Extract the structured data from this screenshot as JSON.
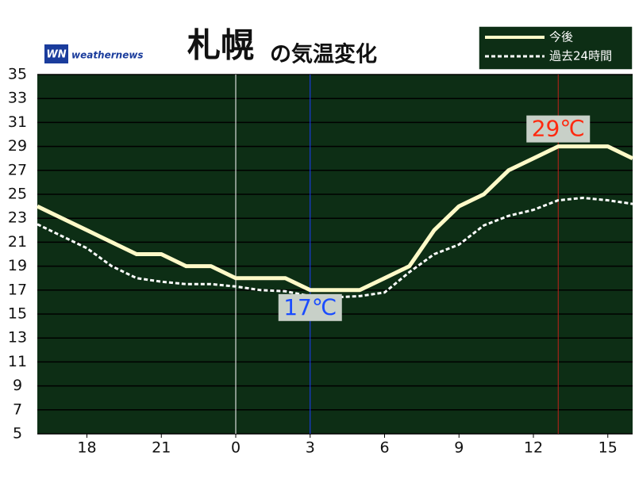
{
  "chart_data": {
    "type": "line",
    "title": "札幌",
    "subtitle": "の気温変化",
    "logo": "weathernews",
    "logo_mark": "WN",
    "x": [
      16,
      17,
      18,
      19,
      20,
      21,
      22,
      23,
      24,
      25,
      26,
      27,
      28,
      29,
      30,
      31,
      32,
      33,
      34,
      35,
      36,
      37,
      38,
      39,
      40
    ],
    "xlim": [
      16,
      40
    ],
    "xticks": [
      {
        "value": 18,
        "label": "18"
      },
      {
        "value": 21,
        "label": "21"
      },
      {
        "value": 24,
        "label": "0"
      },
      {
        "value": 27,
        "label": "3"
      },
      {
        "value": 30,
        "label": "6"
      },
      {
        "value": 33,
        "label": "9"
      },
      {
        "value": 36,
        "label": "12"
      },
      {
        "value": 39,
        "label": "15"
      }
    ],
    "ylim": [
      5,
      35
    ],
    "yticks": [
      5,
      7,
      9,
      11,
      13,
      15,
      17,
      19,
      21,
      23,
      25,
      27,
      29,
      31,
      33,
      35
    ],
    "grid": true,
    "series": [
      {
        "name": "今後",
        "color": "#fffac8",
        "dash": false,
        "values": [
          24,
          23,
          22,
          21,
          20,
          20,
          19,
          19,
          18,
          18,
          18,
          17,
          17,
          17,
          18,
          19,
          22,
          24,
          25,
          27,
          28,
          29,
          29,
          29,
          28
        ]
      },
      {
        "name": "過去24時間",
        "color": "#ffffff",
        "dash": true,
        "values": [
          22.5,
          21.5,
          20.5,
          19,
          18,
          17.7,
          17.5,
          17.5,
          17.3,
          17,
          16.9,
          16.5,
          16.4,
          16.5,
          16.8,
          18.5,
          20,
          20.8,
          22.4,
          23.2,
          23.7,
          24.5,
          24.7,
          24.5,
          24.2
        ]
      }
    ],
    "vlines": [
      {
        "x": 24,
        "color": "#ffffff"
      },
      {
        "x": 27,
        "color": "#1a3cff"
      },
      {
        "x": 37,
        "color": "#c0201a"
      }
    ],
    "annotations": [
      {
        "label": "17℃",
        "value": 17,
        "x": 27,
        "color": "#1a4cff"
      },
      {
        "label": "29℃",
        "value": 29,
        "x": 37,
        "color": "#ff2a10"
      }
    ]
  }
}
